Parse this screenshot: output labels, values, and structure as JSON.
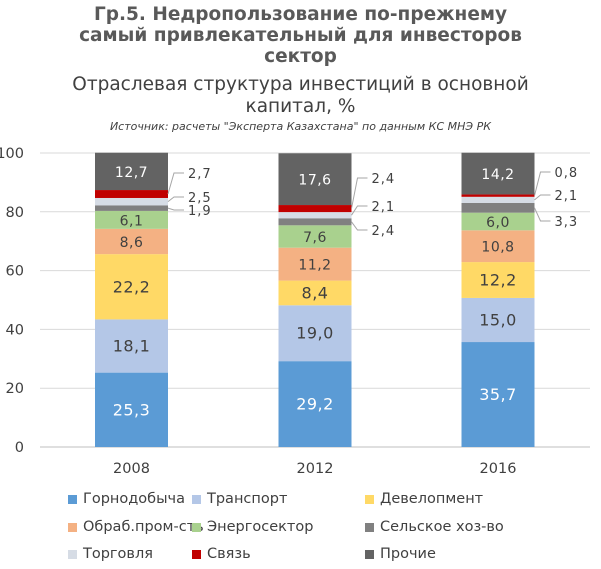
{
  "title": "Гр.5. Недропользование по-прежнему самый привлекательный для инвесторов сектор",
  "title_lines": [
    "Гр.5. Недропользование по-прежнему",
    "самый привлекательный для инвесторов",
    "сектор"
  ],
  "subtitle_lines": [
    "Отраслевая структура инвестиций в основной",
    "капитал, %"
  ],
  "source": "Источник: расчеты \"Эксперта Казахстана\" по данным КС МНЭ РК",
  "chart_data": {
    "type": "bar",
    "stacked": true,
    "title": "Отраслевая структура инвестиций в основной капитал, %",
    "categories": [
      "2008",
      "2012",
      "2016"
    ],
    "ylim": [
      0,
      100
    ],
    "yticks": [
      0,
      20,
      40,
      60,
      80,
      100
    ],
    "grid": true,
    "legend_position": "bottom",
    "series": [
      {
        "name": "Горнодобыча",
        "color": "#5B9BD5",
        "values": [
          25.3,
          29.2,
          35.7
        ],
        "labels": [
          "25,3",
          "29,2",
          "35,7"
        ]
      },
      {
        "name": "Транспорт",
        "color": "#B4C7E7",
        "values": [
          18.1,
          19.0,
          15.0
        ],
        "labels": [
          "18,1",
          "19,0",
          "15,0"
        ]
      },
      {
        "name": "Девелопмент",
        "color": "#FFD966",
        "values": [
          22.2,
          8.4,
          12.2
        ],
        "labels": [
          "22,2",
          "8,4",
          "12,2"
        ]
      },
      {
        "name": "Обраб.пром-сть",
        "color": "#F4B183",
        "values": [
          8.6,
          11.2,
          10.8
        ],
        "labels": [
          "8,6",
          "11,2",
          "10,8"
        ]
      },
      {
        "name": "Энергосектор",
        "color": "#A9D18E",
        "values": [
          6.1,
          7.6,
          6.0
        ],
        "labels": [
          "6,1",
          "7,6",
          "6,0"
        ]
      },
      {
        "name": "Сельское хоз-во",
        "color": "#808080",
        "values": [
          1.9,
          2.4,
          3.3
        ],
        "labels": [
          "1,9",
          "2,4",
          "3,3"
        ]
      },
      {
        "name": "Торговля",
        "color": "#D6DCE5",
        "values": [
          2.5,
          2.1,
          2.1
        ],
        "labels": [
          "2,5",
          "2,1",
          "2,1"
        ]
      },
      {
        "name": "Связь",
        "color": "#C00000",
        "values": [
          2.7,
          2.4,
          0.8
        ],
        "labels": [
          "2,7",
          "2,4",
          "0,8"
        ]
      },
      {
        "name": "Прочие",
        "color": "#636363",
        "values": [
          12.7,
          17.6,
          14.2
        ],
        "labels": [
          "12,7",
          "17,6",
          "14,2"
        ]
      }
    ]
  }
}
